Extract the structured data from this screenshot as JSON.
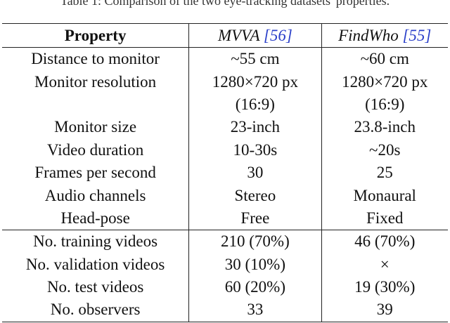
{
  "caption": "Table 1: Comparison of the two eye-tracking datasets' properties.",
  "headers": {
    "property": "Property",
    "dataset_a": "MVVA",
    "dataset_a_cite": "[56]",
    "dataset_b": "FindWho",
    "dataset_b_cite": "[55]"
  },
  "rows": [
    {
      "property": "Distance to monitor",
      "a": "~55 cm",
      "b": "~60 cm"
    },
    {
      "property": "Monitor resolution",
      "a": "1280×720 px",
      "b": "1280×720 px"
    },
    {
      "property": "",
      "a": "(16:9)",
      "b": "(16:9)"
    },
    {
      "property": "Monitor size",
      "a": "23-inch",
      "b": "23.8-inch"
    },
    {
      "property": "Video duration",
      "a": "10-30s",
      "b": "~20s"
    },
    {
      "property": "Frames per second",
      "a": "30",
      "b": "25"
    },
    {
      "property": "Audio channels",
      "a": "Stereo",
      "b": "Monaural"
    },
    {
      "property": "Head-pose",
      "a": "Free",
      "b": "Fixed"
    },
    {
      "property": "No. training videos",
      "a": "210 (70%)",
      "b": "46 (70%)"
    },
    {
      "property": "No. validation videos",
      "a": "30 (10%)",
      "b": "×"
    },
    {
      "property": "No. test videos",
      "a": "60 (20%)",
      "b": "19 (30%)"
    },
    {
      "property": "No. observers",
      "a": "33",
      "b": "39"
    }
  ]
}
